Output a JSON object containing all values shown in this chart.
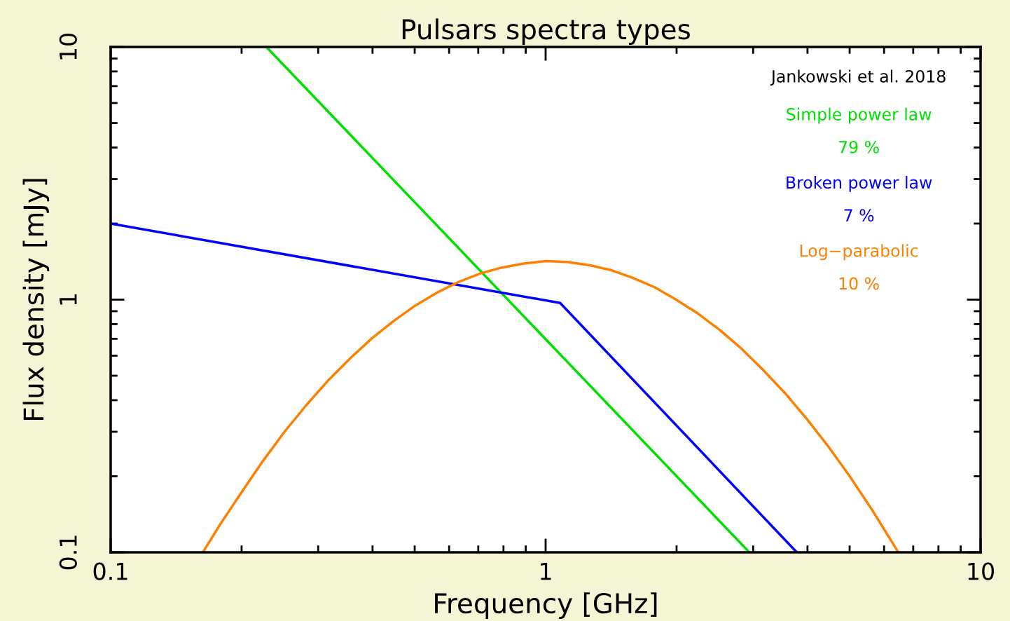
{
  "chart_data": {
    "type": "line",
    "title": "Pulsars spectra types",
    "xlabel": "Frequency [GHz]",
    "ylabel": "Flux density [mJy]",
    "log": "xy",
    "xlim": [
      0.1,
      10
    ],
    "ylim": [
      0.1,
      10
    ],
    "xticks": [
      0.1,
      1,
      10
    ],
    "yticks": [
      0.1,
      1,
      10
    ],
    "grid": false,
    "legend": "top right",
    "annotations": [
      "Jankowski et al. 2018",
      "79 %",
      "7 %",
      "10 %"
    ],
    "series": [
      {
        "name": "Simple power law",
        "color": "#00e000",
        "x": [
          0.228,
          2.94
        ],
        "values": [
          10,
          0.1
        ]
      },
      {
        "name": "Broken power law",
        "color": "#0000ff",
        "x": [
          0.1,
          1.08,
          3.78
        ],
        "values": [
          2.0,
          0.97,
          0.1
        ]
      },
      {
        "name": "Log−parabolic",
        "color": "#ff8000",
        "x": [
          0.163,
          0.178,
          0.2,
          0.224,
          0.251,
          0.282,
          0.316,
          0.355,
          0.398,
          0.447,
          0.501,
          0.562,
          0.631,
          0.708,
          0.794,
          0.891,
          1,
          1.12,
          1.259,
          1.41,
          1.585,
          1.78,
          1.995,
          2.24,
          2.512,
          2.82,
          3.162,
          3.55,
          3.981,
          4.47,
          5.012,
          5.62,
          6.47
        ],
        "values": [
          0.1,
          0.128,
          0.173,
          0.23,
          0.3,
          0.383,
          0.478,
          0.585,
          0.701,
          0.822,
          0.946,
          1.065,
          1.175,
          1.27,
          1.34,
          1.39,
          1.42,
          1.41,
          1.37,
          1.31,
          1.22,
          1.12,
          1.0,
          0.881,
          0.759,
          0.64,
          0.527,
          0.427,
          0.338,
          0.262,
          0.199,
          0.148,
          0.1
        ]
      }
    ]
  }
}
